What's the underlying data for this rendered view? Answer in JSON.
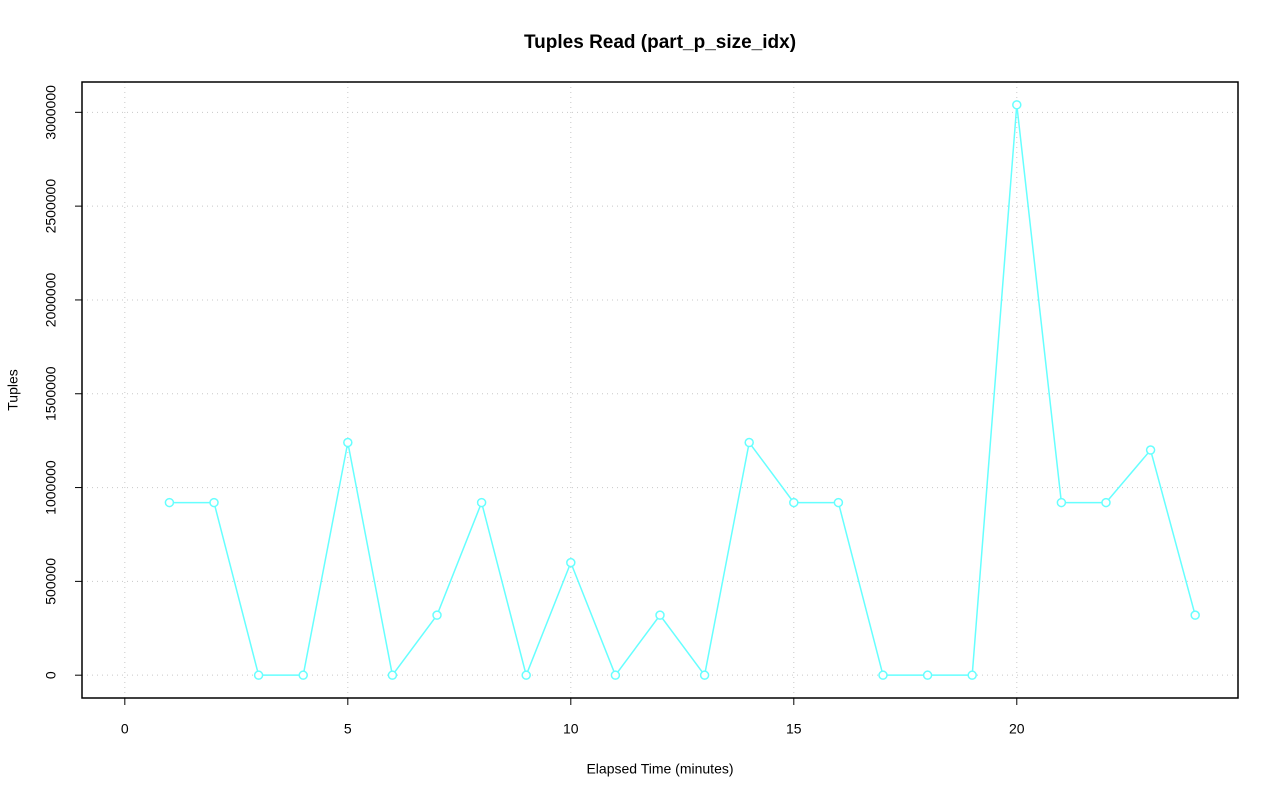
{
  "chart_data": {
    "type": "line",
    "title": "Tuples Read (part_p_size_idx)",
    "x_label": "Elapsed Time (minutes)",
    "y_label": "Tuples",
    "x": [
      1,
      2,
      3,
      4,
      5,
      6,
      7,
      8,
      9,
      10,
      11,
      12,
      13,
      14,
      15,
      16,
      17,
      18,
      19,
      20,
      21,
      22,
      23,
      24
    ],
    "series": [
      {
        "color": "#66ffff",
        "values": [
          920000,
          920000,
          0,
          0,
          1240000,
          0,
          320000,
          920000,
          0,
          600000,
          0,
          320000,
          0,
          1240000,
          920000,
          920000,
          0,
          0,
          0,
          3040000,
          920000,
          920000,
          1200000,
          320000
        ]
      }
    ],
    "xlim": [
      -0.96,
      24.96
    ],
    "xticks": [
      0,
      5,
      10,
      15,
      20
    ],
    "ylim": [
      -121600,
      3161600
    ],
    "yticks": [
      0,
      500000,
      1000000,
      1500000,
      2000000,
      2500000,
      3000000
    ],
    "grid": true
  }
}
